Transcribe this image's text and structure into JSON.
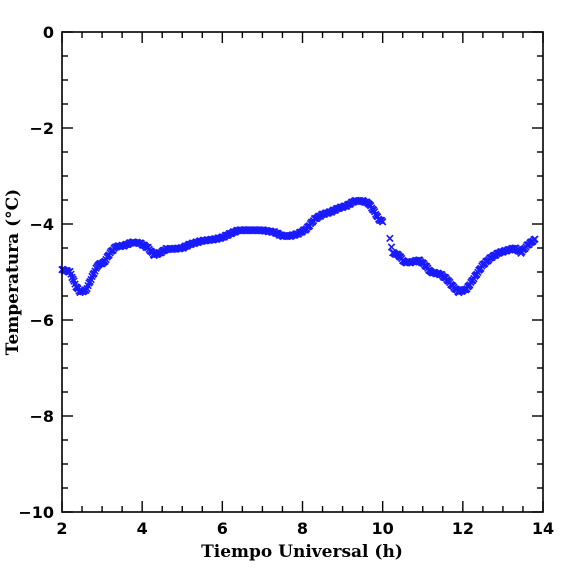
{
  "chart_data": {
    "type": "scatter",
    "marker": "x",
    "color": "#1a1aff",
    "xlabel": "Tiempo Universal (h)",
    "ylabel": "Temperatura (°C)",
    "xlim": [
      2,
      14
    ],
    "ylim": [
      -10,
      0
    ],
    "xticks": [
      2,
      4,
      6,
      8,
      10,
      12,
      14
    ],
    "xtick_labels": [
      "2",
      "4",
      "6",
      "8",
      "10",
      "12",
      "14"
    ],
    "yticks": [
      -10,
      -8,
      -6,
      -4,
      -2,
      0
    ],
    "ytick_labels": [
      "−10",
      "−8",
      "−6",
      "−4",
      "−2",
      "0"
    ],
    "x_minor_step": 0.5,
    "y_minor_step": 0.5,
    "series": [
      {
        "trace": [
          [
            2.0,
            -4.95
          ],
          [
            2.2,
            -5.0
          ],
          [
            2.35,
            -5.3
          ],
          [
            2.45,
            -5.42
          ],
          [
            2.6,
            -5.38
          ],
          [
            2.75,
            -5.1
          ],
          [
            2.9,
            -4.85
          ],
          [
            3.05,
            -4.8
          ],
          [
            3.2,
            -4.6
          ],
          [
            3.35,
            -4.47
          ],
          [
            3.55,
            -4.45
          ],
          [
            3.75,
            -4.38
          ],
          [
            3.95,
            -4.4
          ],
          [
            4.15,
            -4.5
          ],
          [
            4.3,
            -4.65
          ],
          [
            4.45,
            -4.6
          ],
          [
            4.6,
            -4.52
          ],
          [
            4.8,
            -4.52
          ],
          [
            5.0,
            -4.5
          ],
          [
            5.2,
            -4.42
          ],
          [
            5.5,
            -4.35
          ],
          [
            5.8,
            -4.32
          ],
          [
            6.0,
            -4.28
          ],
          [
            6.2,
            -4.2
          ],
          [
            6.4,
            -4.13
          ],
          [
            6.7,
            -4.13
          ],
          [
            7.0,
            -4.13
          ],
          [
            7.3,
            -4.17
          ],
          [
            7.5,
            -4.25
          ],
          [
            7.7,
            -4.25
          ],
          [
            7.9,
            -4.2
          ],
          [
            8.1,
            -4.1
          ],
          [
            8.3,
            -3.9
          ],
          [
            8.5,
            -3.8
          ],
          [
            8.7,
            -3.75
          ],
          [
            8.9,
            -3.67
          ],
          [
            9.1,
            -3.62
          ],
          [
            9.3,
            -3.52
          ],
          [
            9.5,
            -3.52
          ],
          [
            9.65,
            -3.57
          ],
          [
            9.8,
            -3.75
          ],
          [
            9.9,
            -3.9
          ],
          [
            10.0,
            -3.95
          ]
        ],
        "step": 0.025
      },
      {
        "trace": [
          [
            10.25,
            -4.6
          ],
          [
            10.4,
            -4.65
          ],
          [
            10.55,
            -4.8
          ],
          [
            10.7,
            -4.8
          ],
          [
            10.9,
            -4.75
          ],
          [
            11.05,
            -4.85
          ],
          [
            11.2,
            -5.0
          ],
          [
            11.45,
            -5.05
          ],
          [
            11.6,
            -5.15
          ],
          [
            11.75,
            -5.3
          ],
          [
            11.9,
            -5.42
          ],
          [
            12.1,
            -5.35
          ],
          [
            12.3,
            -5.1
          ],
          [
            12.5,
            -4.85
          ],
          [
            12.7,
            -4.7
          ],
          [
            12.9,
            -4.6
          ],
          [
            13.1,
            -4.55
          ],
          [
            13.3,
            -4.5
          ],
          [
            13.45,
            -4.6
          ],
          [
            13.6,
            -4.45
          ],
          [
            13.8,
            -4.32
          ]
        ],
        "step": 0.025
      }
    ],
    "extra_points": [
      [
        10.18,
        -4.3
      ],
      [
        10.22,
        -4.48
      ]
    ]
  }
}
